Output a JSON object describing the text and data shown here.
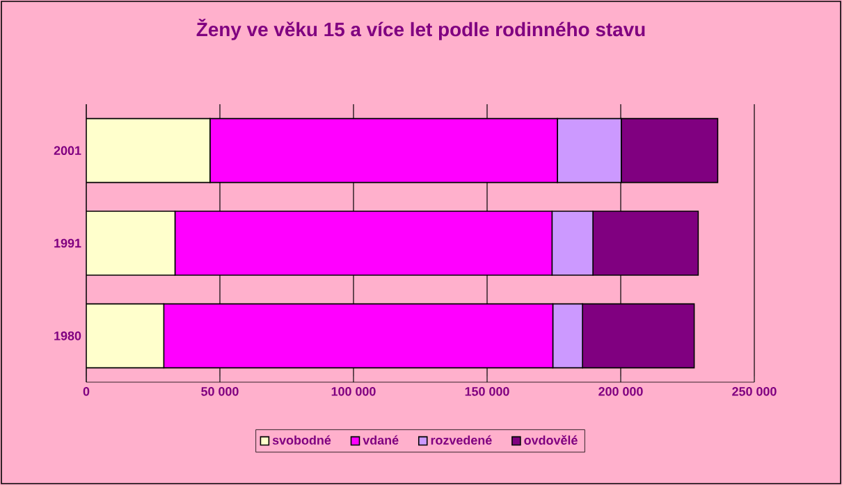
{
  "chart_data": {
    "type": "bar",
    "orientation": "horizontal",
    "stacked": true,
    "title": "Ženy ve věku 15 a více let podle rodinného stavu",
    "categories": [
      "2001",
      "1991",
      "1980"
    ],
    "series": [
      {
        "name": "svobodné",
        "color": "#ffffcc",
        "values": [
          46300,
          33200,
          29000
        ]
      },
      {
        "name": "vdané",
        "color": "#ff00ff",
        "values": [
          130000,
          141100,
          145600
        ]
      },
      {
        "name": "rozvedené",
        "color": "#cc99ff",
        "values": [
          23900,
          15300,
          11100
        ]
      },
      {
        "name": "ovdovělé",
        "color": "#800080",
        "values": [
          36100,
          39400,
          41800
        ]
      }
    ],
    "xlim": [
      0,
      250000
    ],
    "xticks": [
      {
        "value": 0,
        "label": "0"
      },
      {
        "value": 50000,
        "label": "50 000"
      },
      {
        "value": 100000,
        "label": "100 000"
      },
      {
        "value": 150000,
        "label": "150 000"
      },
      {
        "value": 200000,
        "label": "200 000"
      },
      {
        "value": 250000,
        "label": "250 000"
      }
    ],
    "grid": "x",
    "legend": "bottom"
  }
}
